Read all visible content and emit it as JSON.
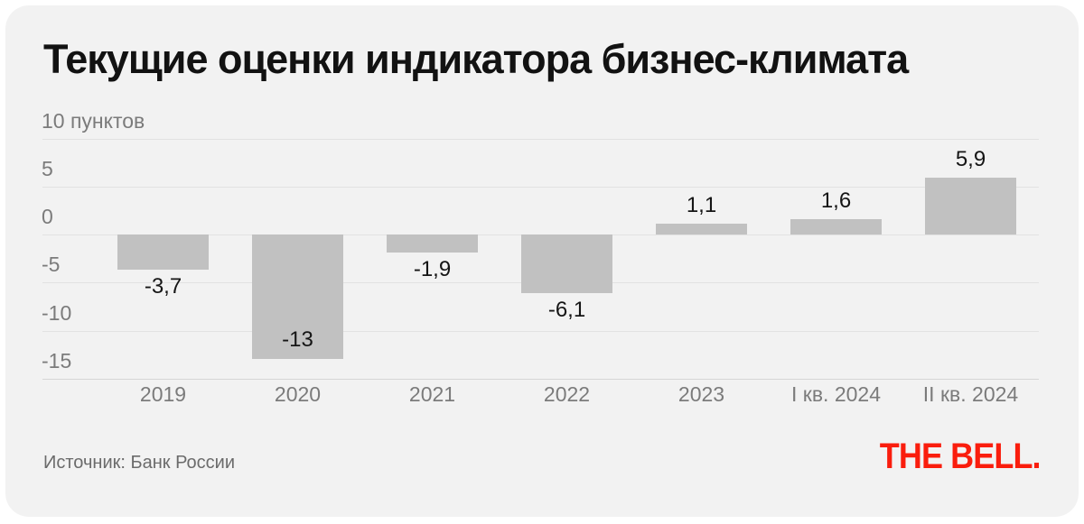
{
  "title": "Текущие оценки индикатора бизнес-климата",
  "source": "Источник: Банк России",
  "logo": {
    "text": "THE BELL.",
    "color": "#fa1d0d"
  },
  "chart_data": {
    "type": "bar",
    "title": "Текущие оценки индикатора бизнес-климата",
    "unit_label": "10 пунктов",
    "categories": [
      "2019",
      "2020",
      "2021",
      "2022",
      "2023",
      "I кв. 2024",
      "II кв. 2024"
    ],
    "values": [
      -3.7,
      -13,
      -1.9,
      -6.1,
      1.1,
      1.6,
      5.9
    ],
    "value_labels": [
      "-3,7",
      "-13",
      "-1,9",
      "-6,1",
      "1,1",
      "1,6",
      "5,9"
    ],
    "y_ticks": [
      10,
      5,
      0,
      -5,
      -10,
      -15
    ],
    "y_tick_labels": [
      "10 пунктов",
      "5",
      "0",
      "-5",
      "-10",
      "-15"
    ],
    "ylim": [
      -16.5,
      10
    ],
    "xlabel": "",
    "ylabel": "пункты",
    "grid": true,
    "legend_position": "none",
    "bar_color": "#c1c1c1",
    "background": "#f2f2f2",
    "axis_label_color": "#7b7b7b",
    "value_label_color": "#151515"
  }
}
